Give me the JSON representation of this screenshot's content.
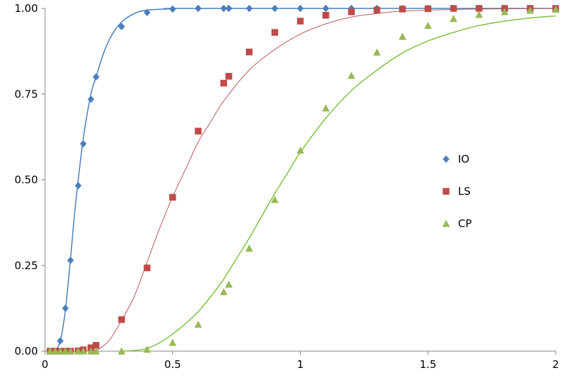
{
  "chart_data": {
    "type": "scatter",
    "title": "",
    "xlabel": "",
    "ylabel": "",
    "xlim": [
      0,
      2
    ],
    "ylim": [
      0,
      1
    ],
    "x_ticks": [
      {
        "value": 0,
        "label": "0"
      },
      {
        "value": 0.5,
        "label": "0.5"
      },
      {
        "value": 1,
        "label": "1"
      },
      {
        "value": 1.5,
        "label": "1.5"
      },
      {
        "value": 2,
        "label": "2"
      }
    ],
    "y_ticks": [
      {
        "value": 0,
        "label": "0.00"
      },
      {
        "value": 0.25,
        "label": "0.25"
      },
      {
        "value": 0.5,
        "label": "0.50"
      },
      {
        "value": 0.75,
        "label": "0.75"
      },
      {
        "value": 1,
        "label": "1.00"
      }
    ],
    "grid": false,
    "legend_position": "right-center",
    "series": [
      {
        "name": "IO",
        "marker": "diamond",
        "color": "#4a7ebb",
        "line_color": "#4a7ebb",
        "points": [
          [
            0.02,
            0.0
          ],
          [
            0.04,
            0.0
          ],
          [
            0.06,
            0.03
          ],
          [
            0.08,
            0.125
          ],
          [
            0.1,
            0.265
          ],
          [
            0.13,
            0.483
          ],
          [
            0.15,
            0.605
          ],
          [
            0.18,
            0.735
          ],
          [
            0.2,
            0.8
          ],
          [
            0.3,
            0.947
          ],
          [
            0.4,
            0.988
          ],
          [
            0.5,
            0.998
          ],
          [
            0.6,
            1.0
          ],
          [
            0.7,
            1.0
          ],
          [
            0.72,
            1.0
          ],
          [
            0.8,
            1.0
          ],
          [
            0.9,
            1.0
          ],
          [
            1.0,
            1.0
          ],
          [
            1.1,
            1.0
          ],
          [
            1.2,
            1.0
          ],
          [
            1.3,
            1.0
          ],
          [
            1.4,
            1.0
          ],
          [
            1.5,
            1.0
          ],
          [
            1.6,
            1.0
          ],
          [
            1.7,
            1.0
          ],
          [
            1.8,
            1.0
          ],
          [
            1.9,
            1.0
          ],
          [
            2.0,
            1.0
          ]
        ],
        "fit": [
          [
            0.02,
            0.0
          ],
          [
            0.04,
            0.003
          ],
          [
            0.06,
            0.03
          ],
          [
            0.08,
            0.12
          ],
          [
            0.1,
            0.27
          ],
          [
            0.12,
            0.43
          ],
          [
            0.15,
            0.62
          ],
          [
            0.18,
            0.75
          ],
          [
            0.2,
            0.8
          ],
          [
            0.23,
            0.87
          ],
          [
            0.26,
            0.92
          ],
          [
            0.3,
            0.96
          ],
          [
            0.35,
            0.985
          ],
          [
            0.4,
            0.995
          ],
          [
            0.5,
            0.999
          ],
          [
            0.6,
            1.0
          ],
          [
            2.0,
            1.0
          ]
        ]
      },
      {
        "name": "LS",
        "marker": "square",
        "color": "#be4b48",
        "line_color": "#b35a58",
        "points": [
          [
            0.02,
            0.0
          ],
          [
            0.04,
            0.0
          ],
          [
            0.06,
            0.0
          ],
          [
            0.08,
            0.0
          ],
          [
            0.1,
            0.0
          ],
          [
            0.13,
            0.001
          ],
          [
            0.15,
            0.004
          ],
          [
            0.18,
            0.01
          ],
          [
            0.2,
            0.017
          ],
          [
            0.3,
            0.092
          ],
          [
            0.4,
            0.243
          ],
          [
            0.5,
            0.449
          ],
          [
            0.6,
            0.642
          ],
          [
            0.7,
            0.782
          ],
          [
            0.72,
            0.802
          ],
          [
            0.8,
            0.873
          ],
          [
            0.9,
            0.93
          ],
          [
            1.0,
            0.963
          ],
          [
            1.1,
            0.98
          ],
          [
            1.2,
            0.99
          ],
          [
            1.3,
            0.995
          ],
          [
            1.4,
            0.998
          ],
          [
            1.5,
            0.999
          ],
          [
            1.6,
            1.0
          ],
          [
            1.7,
            1.0
          ],
          [
            1.8,
            1.0
          ],
          [
            1.9,
            1.0
          ],
          [
            2.0,
            1.0
          ]
        ],
        "fit": [
          [
            0.2,
            0.0
          ],
          [
            0.25,
            0.03
          ],
          [
            0.3,
            0.09
          ],
          [
            0.35,
            0.16
          ],
          [
            0.4,
            0.26
          ],
          [
            0.45,
            0.36
          ],
          [
            0.5,
            0.45
          ],
          [
            0.55,
            0.53
          ],
          [
            0.6,
            0.61
          ],
          [
            0.65,
            0.67
          ],
          [
            0.7,
            0.73
          ],
          [
            0.8,
            0.82
          ],
          [
            0.9,
            0.88
          ],
          [
            1.0,
            0.925
          ],
          [
            1.1,
            0.955
          ],
          [
            1.2,
            0.975
          ],
          [
            1.3,
            0.985
          ],
          [
            1.4,
            0.992
          ],
          [
            1.6,
            0.997
          ],
          [
            1.8,
            0.999
          ],
          [
            2.0,
            1.0
          ]
        ]
      },
      {
        "name": "CP",
        "marker": "triangle",
        "color": "#98b954",
        "line_color": "#7fc241",
        "points": [
          [
            0.02,
            0.0
          ],
          [
            0.04,
            0.0
          ],
          [
            0.06,
            0.0
          ],
          [
            0.08,
            0.0
          ],
          [
            0.1,
            0.0
          ],
          [
            0.13,
            0.0
          ],
          [
            0.15,
            0.0
          ],
          [
            0.18,
            0.0
          ],
          [
            0.2,
            0.0
          ],
          [
            0.3,
            0.0
          ],
          [
            0.4,
            0.005
          ],
          [
            0.5,
            0.025
          ],
          [
            0.6,
            0.078
          ],
          [
            0.7,
            0.173
          ],
          [
            0.72,
            0.195
          ],
          [
            0.8,
            0.3
          ],
          [
            0.9,
            0.442
          ],
          [
            1.0,
            0.586
          ],
          [
            1.1,
            0.709
          ],
          [
            1.2,
            0.804
          ],
          [
            1.3,
            0.872
          ],
          [
            1.4,
            0.918
          ],
          [
            1.5,
            0.95
          ],
          [
            1.6,
            0.97
          ],
          [
            1.7,
            0.982
          ],
          [
            1.8,
            0.99
          ],
          [
            1.9,
            0.994
          ],
          [
            2.0,
            0.997
          ]
        ],
        "fit": [
          [
            0.3,
            0.0
          ],
          [
            0.35,
            0.002
          ],
          [
            0.4,
            0.008
          ],
          [
            0.45,
            0.025
          ],
          [
            0.5,
            0.05
          ],
          [
            0.55,
            0.08
          ],
          [
            0.6,
            0.115
          ],
          [
            0.65,
            0.16
          ],
          [
            0.7,
            0.21
          ],
          [
            0.75,
            0.27
          ],
          [
            0.8,
            0.33
          ],
          [
            0.85,
            0.395
          ],
          [
            0.9,
            0.46
          ],
          [
            0.95,
            0.52
          ],
          [
            1.0,
            0.58
          ],
          [
            1.1,
            0.68
          ],
          [
            1.2,
            0.76
          ],
          [
            1.3,
            0.82
          ],
          [
            1.4,
            0.87
          ],
          [
            1.5,
            0.905
          ],
          [
            1.6,
            0.93
          ],
          [
            1.7,
            0.95
          ],
          [
            1.8,
            0.963
          ],
          [
            1.9,
            0.972
          ],
          [
            2.0,
            0.978
          ]
        ]
      }
    ]
  }
}
